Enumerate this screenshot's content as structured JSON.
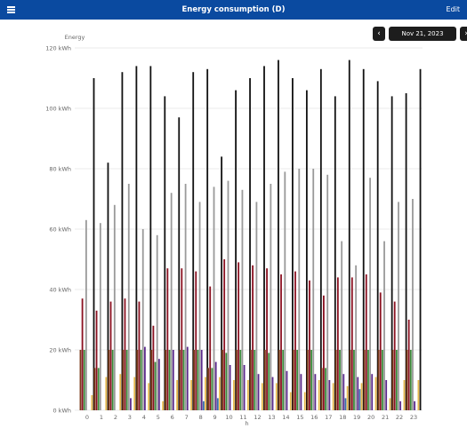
{
  "appbar": {
    "title": "Energy consumption (D)",
    "edit_label": "Edit",
    "menu_icon": "menu-icon"
  },
  "date_nav": {
    "date": "Nov 21, 2023",
    "prev_icon": "chevron-left-icon",
    "next_icon": "chevron-right-icon"
  },
  "chart_data": {
    "type": "bar",
    "ylabel": "Energy",
    "xlabel": "h",
    "ylim": [
      0,
      120
    ],
    "yticks": [
      "0 kWh",
      "20 kWh",
      "40 kWh",
      "60 kWh",
      "80 kWh",
      "100 kWh",
      "120 kWh"
    ],
    "categories": [
      "0",
      "1",
      "2",
      "3",
      "4",
      "5",
      "6",
      "7",
      "8",
      "9",
      "10",
      "11",
      "12",
      "13",
      "14",
      "15",
      "16",
      "17",
      "18",
      "19",
      "20",
      "21",
      "22",
      "23"
    ],
    "grid": true,
    "colors": [
      "#7a3b1a",
      "#8a1020",
      "#3a8a3a",
      "#9a9a9a",
      "#5b2a8c",
      "#3a6ea8",
      "#e6b84c",
      "#111111"
    ],
    "series": [
      {
        "values": [
          20,
          14,
          20,
          20,
          20,
          20,
          20,
          20,
          20,
          14,
          20,
          20,
          20,
          20,
          20,
          20,
          20,
          14,
          20,
          20,
          20,
          20,
          20,
          20
        ]
      },
      {
        "values": [
          37,
          33,
          36,
          37,
          36,
          28,
          47,
          47,
          46,
          41,
          50,
          49,
          48,
          47,
          45,
          46,
          43,
          38,
          44,
          44,
          45,
          39,
          36,
          30
        ]
      },
      {
        "values": [
          20,
          14,
          20,
          20,
          20,
          16,
          20,
          20,
          20,
          14,
          19,
          20,
          20,
          19,
          20,
          20,
          20,
          14,
          20,
          20,
          20,
          20,
          20,
          20
        ]
      },
      {
        "values": [
          63,
          62,
          68,
          75,
          60,
          58,
          72,
          75,
          69,
          74,
          76,
          73,
          69,
          75,
          79,
          80,
          80,
          78,
          56,
          48,
          77,
          56,
          69,
          70
        ]
      },
      {
        "values": [
          0,
          0,
          0,
          4,
          21,
          17,
          20,
          21,
          20,
          16,
          15,
          15,
          12,
          11,
          13,
          12,
          12,
          10,
          12,
          11,
          12,
          10,
          3,
          3
        ]
      },
      {
        "values": [
          0,
          0,
          0,
          0,
          0,
          0,
          0,
          0,
          3,
          4,
          0,
          0,
          0,
          0,
          0,
          0,
          0,
          0,
          4,
          7,
          0,
          0,
          0,
          0
        ]
      },
      {
        "values": [
          5,
          11,
          12,
          11,
          9,
          3,
          10,
          10,
          11,
          11,
          10,
          10,
          9,
          9,
          6,
          6,
          10,
          9,
          8,
          9,
          11,
          4,
          10,
          10
        ]
      },
      {
        "values": [
          110,
          82,
          112,
          114,
          114,
          104,
          97,
          112,
          113,
          84,
          106,
          110,
          114,
          116,
          110,
          106,
          113,
          104,
          116,
          113,
          109,
          104,
          105,
          113
        ]
      }
    ]
  }
}
